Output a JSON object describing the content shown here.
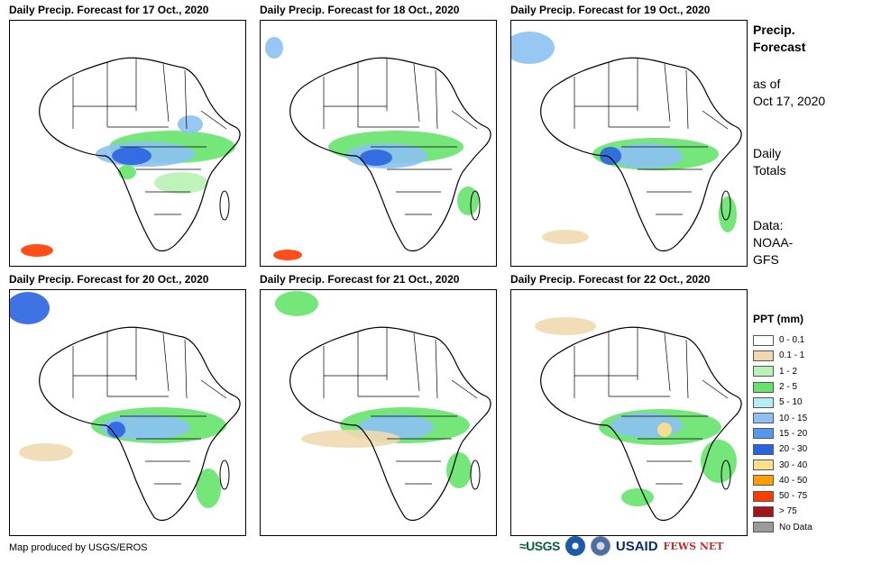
{
  "panels": [
    {
      "title": "Daily Precip. Forecast for 17 Oct., 2020"
    },
    {
      "title": "Daily Precip. Forecast for 18 Oct., 2020"
    },
    {
      "title": "Daily Precip. Forecast for 19 Oct., 2020"
    },
    {
      "title": "Daily Precip. Forecast for 20 Oct., 2020"
    },
    {
      "title": "Daily Precip. Forecast for 21 Oct., 2020"
    },
    {
      "title": "Daily Precip. Forecast for 22 Oct., 2020"
    }
  ],
  "side": {
    "heading_line1": "Precip.",
    "heading_line2": "Forecast",
    "asof_line1": "as of",
    "asof_line2": "Oct 17, 2020",
    "totals_line1": "Daily",
    "totals_line2": "Totals",
    "data_line1": "Data:",
    "data_line2": "NOAA-",
    "data_line3": "GFS"
  },
  "legend": {
    "title": "PPT (mm)",
    "items": [
      {
        "label": "0 - 0.1",
        "color": "#ffffff"
      },
      {
        "label": "0.1 - 1",
        "color": "#f0d9b0"
      },
      {
        "label": "1 - 2",
        "color": "#b9f2b3"
      },
      {
        "label": "2 - 5",
        "color": "#66e36a"
      },
      {
        "label": "5 - 10",
        "color": "#b6ecf5"
      },
      {
        "label": "10 - 15",
        "color": "#8cc1f2"
      },
      {
        "label": "15 - 20",
        "color": "#5599ec"
      },
      {
        "label": "20 - 30",
        "color": "#2a63e0"
      },
      {
        "label": "30 - 40",
        "color": "#ffe08a"
      },
      {
        "label": "40 - 50",
        "color": "#ff9f00"
      },
      {
        "label": "50 - 75",
        "color": "#ff3b00"
      },
      {
        "label": "> 75",
        "color": "#a4141b"
      },
      {
        "label": "No Data",
        "color": "#9a9a9a"
      }
    ]
  },
  "credit": "Map produced by USGS/EROS",
  "logos": {
    "usgs": "≈USGS",
    "usaid": "USAID",
    "fews": "FEWS NET"
  }
}
